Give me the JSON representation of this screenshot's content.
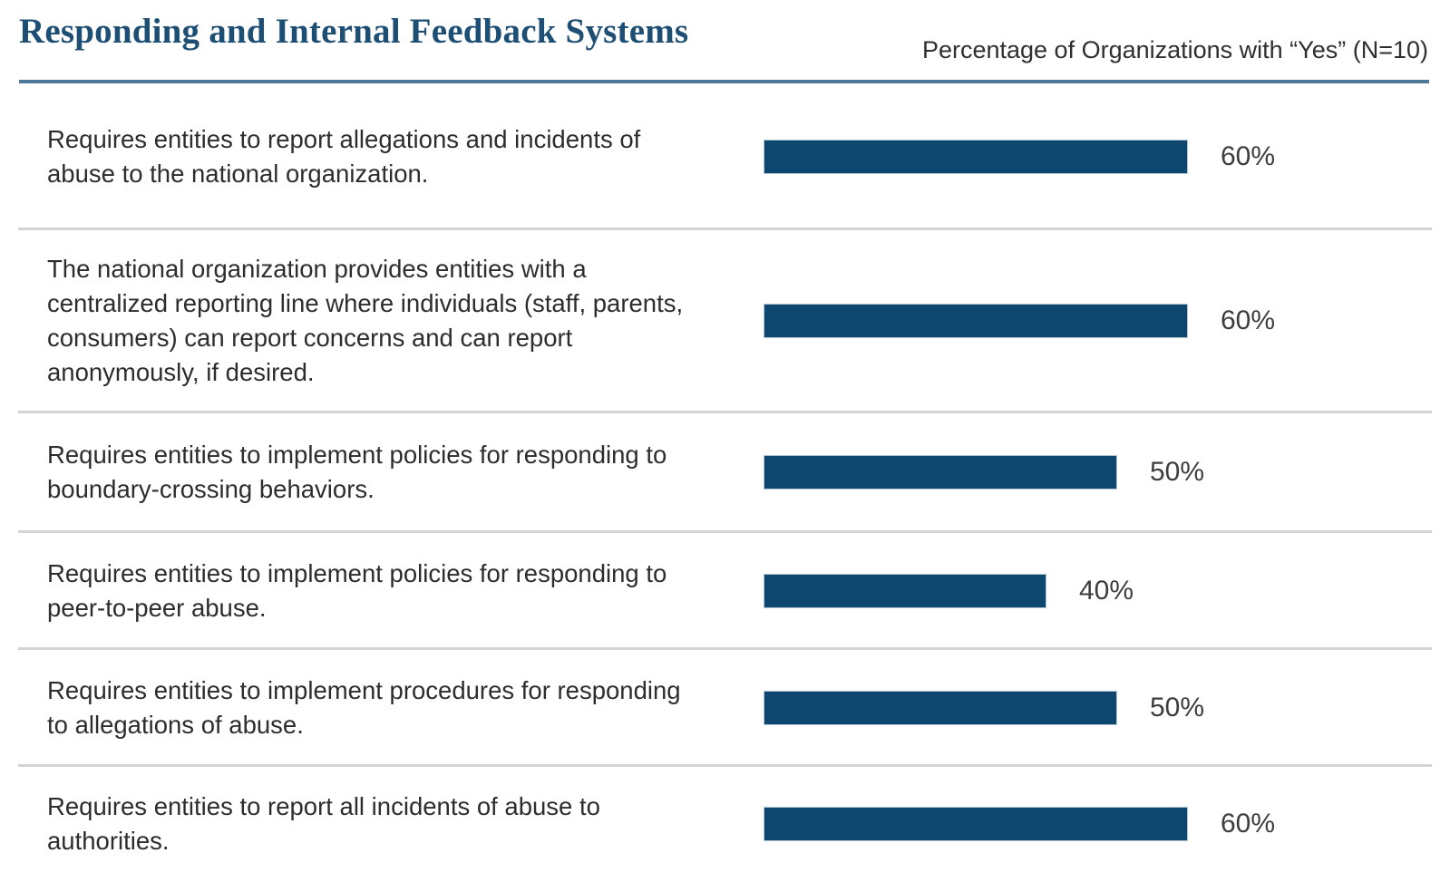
{
  "header": {
    "title": "Responding and Internal Feedback Systems",
    "subtitle": "Percentage of Organizations with “Yes” (N=10)"
  },
  "chart_data": {
    "type": "bar",
    "orientation": "horizontal",
    "title": "Responding and Internal Feedback Systems",
    "xlabel": "Percentage of Organizations with “Yes” (N=10)",
    "xlim": [
      0,
      100
    ],
    "grid": false,
    "legend": false,
    "categories": [
      "Requires entities to report allegations and incidents of abuse to the national organization.",
      "The national organization provides entities with a centralized reporting line where individuals (staff, parents, consumers) can report concerns and can report anonymously, if desired.",
      "Requires entities to implement policies for responding to boundary-crossing behaviors.",
      "Requires entities to implement policies for responding to peer-to-peer abuse.",
      "Requires entities to implement procedures for responding to allegations of abuse.",
      "Requires entities to report all incidents of abuse to authorities."
    ],
    "values": [
      60,
      60,
      50,
      40,
      50,
      60
    ],
    "value_labels": [
      "60%",
      "60%",
      "50%",
      "40%",
      "50%",
      "60%"
    ]
  },
  "colors": {
    "bar": "#0d466e",
    "title": "#1d4e74",
    "header_rule": "#4c7995",
    "row_divider": "#d3d3d3",
    "text": "#2d2d2d"
  }
}
